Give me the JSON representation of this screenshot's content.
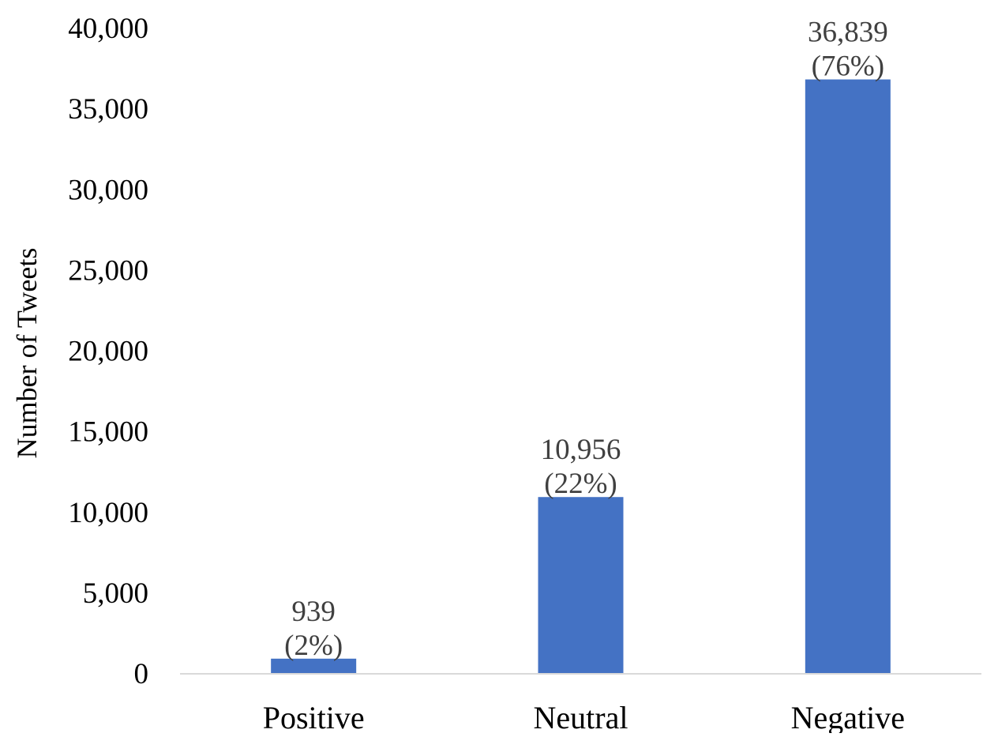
{
  "chart_data": {
    "type": "bar",
    "title": "",
    "xlabel": "",
    "ylabel": "Number of Tweets",
    "categories": [
      "Positive",
      "Neutral",
      "Negative"
    ],
    "values": [
      939,
      10956,
      36839
    ],
    "value_labels": [
      "939",
      "10,956",
      "36,839"
    ],
    "percent_labels": [
      "(2%)",
      "(22%)",
      "(76%)"
    ],
    "ylim": [
      0,
      40000
    ],
    "yticks": [
      0,
      5000,
      10000,
      15000,
      20000,
      25000,
      30000,
      35000,
      40000
    ],
    "ytick_labels": [
      "0",
      "5,000",
      "10,000",
      "15,000",
      "20,000",
      "25,000",
      "30,000",
      "35,000",
      "40,000"
    ],
    "grid": false,
    "legend": "none",
    "colors": {
      "bar": "#4472C4",
      "axis": "#D9D9D9",
      "data_label": "#404040",
      "text": "#000000"
    }
  }
}
